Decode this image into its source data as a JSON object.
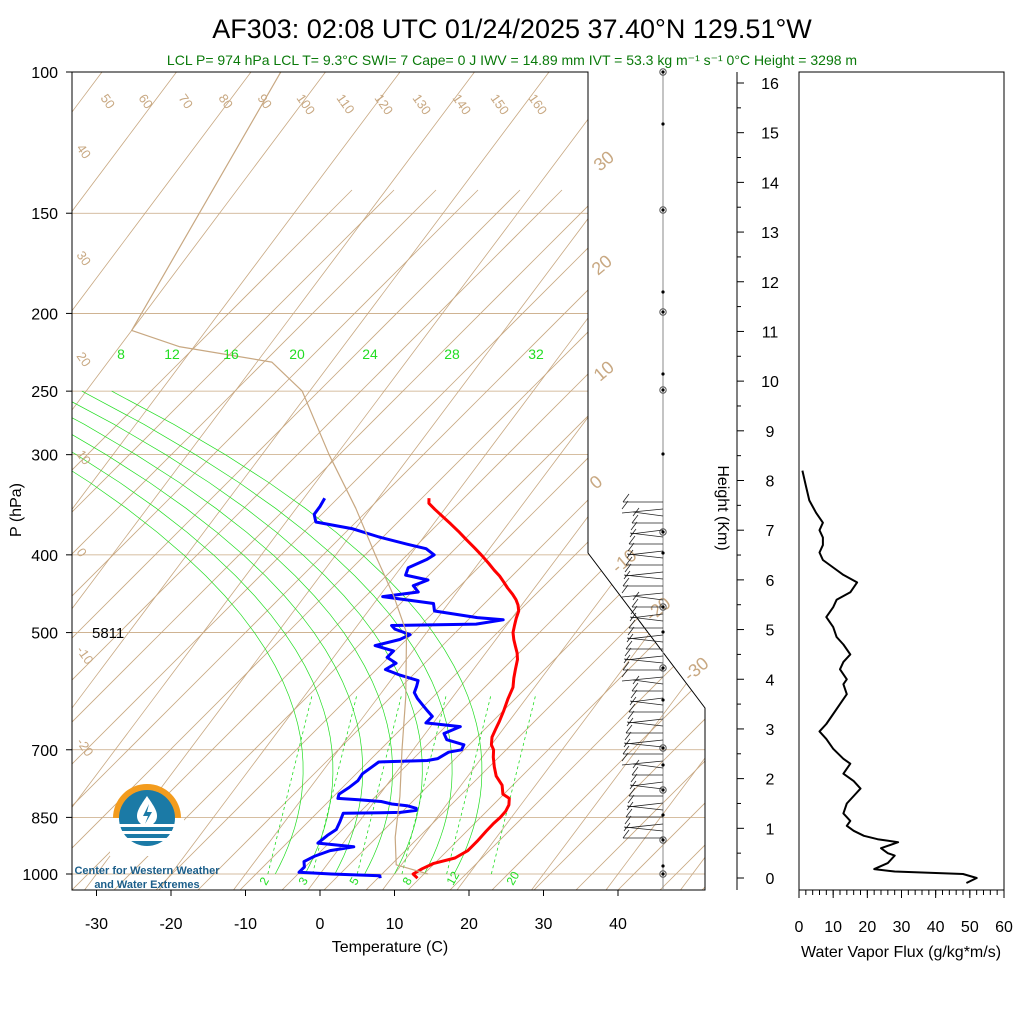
{
  "title": "AF303: 02:08 UTC 01/24/2025  37.40°N 129.51°W",
  "subtitle": "LCL P= 974 hPa  LCL T= 9.3°C  SWI= 7  Cape= 0 J  IWV = 14.89 mm  IVT = 53.3 kg m⁻¹ s⁻¹  0°C Height = 3298 m",
  "height_500": "5811",
  "logo": {
    "line1": "Center for Western Weather",
    "line2": "and Water Extremes"
  },
  "colors": {
    "temperature": "#ff0000",
    "dewpoint": "#0000ff",
    "grid": "#c8a882",
    "mixing_ratio": "#22dd22",
    "subtitle": "#0a7a0a"
  },
  "chart_data": [
    {
      "type": "line",
      "name": "skew-t",
      "xlabel": "Temperature (C)",
      "ylabel": "P (hPa)",
      "x_ticks": [
        "-30",
        "-20",
        "-10",
        "0",
        "10",
        "20",
        "30",
        "40"
      ],
      "y_ticks": [
        100,
        150,
        200,
        250,
        300,
        400,
        500,
        700,
        850,
        1000
      ],
      "dry_adiabat_labels": [
        "50",
        "60",
        "70",
        "80",
        "90",
        "100",
        "110",
        "120",
        "130",
        "140",
        "150",
        "160"
      ],
      "isotherm_labels_left": [
        "40",
        "30",
        "20",
        "10",
        "0",
        "-10",
        "-20"
      ],
      "isotherm_labels_right": [
        "30",
        "20",
        "10",
        "0",
        "-10",
        "-20",
        "-30"
      ],
      "mixing_ratio_labels_top": [
        "8",
        "12",
        "16",
        "20",
        "24",
        "28",
        "32"
      ],
      "mixing_ratio_labels_bottom": [
        "2",
        "3",
        "5",
        "8",
        "12",
        "20"
      ],
      "height_km_ticks": [
        "0",
        "1",
        "2",
        "3",
        "4",
        "5",
        "6",
        "7",
        "8",
        "9",
        "10",
        "11",
        "12",
        "13",
        "14",
        "15",
        "16"
      ],
      "height_label": "Height (Km)",
      "series": [
        {
          "name": "temperature",
          "points": [
            [
              13.5,
              1012
            ],
            [
              12.5,
              1000
            ],
            [
              13.2,
              985
            ],
            [
              14.2,
              970
            ],
            [
              16.5,
              955
            ],
            [
              17.5,
              935
            ],
            [
              17.8,
              910
            ],
            [
              18.0,
              885
            ],
            [
              18.2,
              865
            ],
            [
              18.5,
              850
            ],
            [
              18.6,
              835
            ],
            [
              18.4,
              820
            ],
            [
              17.8,
              805
            ],
            [
              16.5,
              795
            ],
            [
              15.5,
              775
            ],
            [
              13.8,
              755
            ],
            [
              12.6,
              735
            ],
            [
              11.5,
              715
            ],
            [
              10.8,
              700
            ],
            [
              10.0,
              690
            ],
            [
              9.3,
              675
            ],
            [
              9.0,
              660
            ],
            [
              8.7,
              645
            ],
            [
              8.2,
              625
            ],
            [
              7.6,
              605
            ],
            [
              7.1,
              585
            ],
            [
              6.3,
              570
            ],
            [
              5.6,
              555
            ],
            [
              4.9,
              540
            ],
            [
              4.2,
              530
            ],
            [
              3.3,
              520
            ],
            [
              2.4,
              510
            ],
            [
              1.6,
              500
            ],
            [
              1.1,
              490
            ],
            [
              0.6,
              480
            ],
            [
              0.2,
              470
            ],
            [
              -0.5,
              462
            ],
            [
              -1.3,
              455
            ],
            [
              -2.3,
              448
            ],
            [
              -3.6,
              440
            ],
            [
              -4.8,
              432
            ],
            [
              -5.9,
              425
            ],
            [
              -7.2,
              418
            ],
            [
              -8.6,
              410
            ],
            [
              -10.3,
              401
            ],
            [
              -12.1,
              392
            ],
            [
              -14.0,
              383
            ],
            [
              -15.9,
              374
            ],
            [
              -17.7,
              366
            ],
            [
              -19.6,
              358
            ],
            [
              -21.3,
              351
            ],
            [
              -22.7,
              345
            ],
            [
              -23.2,
              340
            ]
          ]
        },
        {
          "name": "dewpoint",
          "points": [
            [
              8.5,
              1012
            ],
            [
              8.2,
              1005
            ],
            [
              1.5,
              1000
            ],
            [
              -3.0,
              995
            ],
            [
              -2.8,
              980
            ],
            [
              -3.4,
              965
            ],
            [
              -2.5,
              950
            ],
            [
              -1.0,
              935
            ],
            [
              1.8,
              925
            ],
            [
              -3.4,
              915
            ],
            [
              -2.9,
              895
            ],
            [
              -2.3,
              880
            ],
            [
              -2.6,
              860
            ],
            [
              -3.0,
              840
            ],
            [
              4.6,
              838
            ],
            [
              6.5,
              833
            ],
            [
              6.3,
              828
            ],
            [
              4.8,
              822
            ],
            [
              2.6,
              818
            ],
            [
              0.9,
              812
            ],
            [
              -2.3,
              808
            ],
            [
              -5.2,
              805
            ],
            [
              -5.5,
              795
            ],
            [
              -4.8,
              780
            ],
            [
              -4.3,
              765
            ],
            [
              -4.4,
              750
            ],
            [
              -3.8,
              735
            ],
            [
              -3.4,
              725
            ],
            [
              3.0,
              722
            ],
            [
              4.2,
              718
            ],
            [
              5.0,
              705
            ],
            [
              6.5,
              700
            ],
            [
              6.3,
              690
            ],
            [
              3.5,
              680
            ],
            [
              2.5,
              668
            ],
            [
              4.0,
              655
            ],
            [
              -1.0,
              648
            ],
            [
              -0.8,
              636
            ],
            [
              -2.0,
              626
            ],
            [
              -3.3,
              615
            ],
            [
              -4.6,
              604
            ],
            [
              -5.6,
              594
            ],
            [
              -5.9,
              584
            ],
            [
              -6.3,
              574
            ],
            [
              -9.3,
              565
            ],
            [
              -11.8,
              556
            ],
            [
              -11.0,
              546
            ],
            [
              -12.8,
              537
            ],
            [
              -12.6,
              527
            ],
            [
              -15.6,
              519
            ],
            [
              -12.9,
              510
            ],
            [
              -12.0,
              503
            ],
            [
              -14.6,
              495
            ],
            [
              -15.4,
              490
            ],
            [
              -4.2,
              488
            ],
            [
              -1.0,
              482
            ],
            [
              -4.7,
              479
            ],
            [
              -11.1,
              470
            ],
            [
              -12.0,
              460
            ],
            [
              -19.5,
              451
            ],
            [
              -15.2,
              445
            ],
            [
              -16.5,
              437
            ],
            [
              -15.1,
              430
            ],
            [
              -18.6,
              424
            ],
            [
              -19.0,
              415
            ],
            [
              -17.3,
              405
            ],
            [
              -16.8,
              400
            ],
            [
              -18.5,
              393
            ],
            [
              -21.5,
              388
            ],
            [
              -26.0,
              380
            ],
            [
              -30.5,
              371
            ],
            [
              -36.0,
              364
            ],
            [
              -37.0,
              356
            ],
            [
              -37.0,
              348
            ],
            [
              -37.2,
              340
            ]
          ]
        },
        {
          "name": "parcel",
          "points": [
            [
              14.5,
              1000
            ],
            [
              9.3,
              974
            ],
            [
              6.4,
              900
            ],
            [
              2.9,
              800
            ],
            [
              -1.5,
              700
            ],
            [
              -6.4,
              600
            ],
            [
              -12.7,
              500
            ],
            [
              -18.1,
              450
            ],
            [
              -24.7,
              400
            ],
            [
              -32.0,
              350
            ],
            [
              -41.0,
              300
            ],
            [
              -51.0,
              250
            ],
            [
              -58.0,
              230
            ],
            [
              -72.0,
              220
            ],
            [
              -80.0,
              210
            ],
            [
              -86.0,
              100
            ]
          ]
        }
      ]
    },
    {
      "type": "line",
      "name": "water-vapor-flux",
      "xlabel": "Water Vapor Flux (g/kg*m/s)",
      "x_ticks": [
        "0",
        "10",
        "20",
        "30",
        "40",
        "50",
        "60"
      ],
      "xlim": [
        0,
        60
      ],
      "ylim_km": [
        0,
        16.5
      ],
      "points": [
        [
          49,
          -0.1
        ],
        [
          52,
          0.0
        ],
        [
          48,
          0.08
        ],
        [
          40,
          0.1
        ],
        [
          28,
          0.13
        ],
        [
          22,
          0.18
        ],
        [
          26,
          0.3
        ],
        [
          28,
          0.45
        ],
        [
          26,
          0.5
        ],
        [
          24,
          0.6
        ],
        [
          29,
          0.72
        ],
        [
          23,
          0.78
        ],
        [
          19,
          0.85
        ],
        [
          16,
          0.95
        ],
        [
          14,
          1.05
        ],
        [
          15,
          1.15
        ],
        [
          13,
          1.3
        ],
        [
          14,
          1.5
        ],
        [
          16,
          1.65
        ],
        [
          18,
          1.8
        ],
        [
          16,
          1.95
        ],
        [
          13,
          2.1
        ],
        [
          15,
          2.3
        ],
        [
          13,
          2.4
        ],
        [
          10,
          2.6
        ],
        [
          8,
          2.8
        ],
        [
          6,
          2.95
        ],
        [
          8,
          3.1
        ],
        [
          10,
          3.3
        ],
        [
          12,
          3.5
        ],
        [
          14,
          3.7
        ],
        [
          13,
          3.9
        ],
        [
          14,
          4.0
        ],
        [
          12,
          4.2
        ],
        [
          13,
          4.35
        ],
        [
          15,
          4.5
        ],
        [
          13,
          4.7
        ],
        [
          11,
          4.85
        ],
        [
          10,
          5.05
        ],
        [
          8,
          5.25
        ],
        [
          10,
          5.45
        ],
        [
          11,
          5.6
        ],
        [
          15,
          5.75
        ],
        [
          17,
          5.95
        ],
        [
          13,
          6.1
        ],
        [
          10,
          6.25
        ],
        [
          7,
          6.4
        ],
        [
          6,
          6.55
        ],
        [
          7,
          6.7
        ],
        [
          7,
          6.85
        ],
        [
          6,
          7.0
        ],
        [
          7,
          7.15
        ],
        [
          5,
          7.35
        ],
        [
          3,
          7.6
        ],
        [
          2,
          7.9
        ],
        [
          1,
          8.2
        ]
      ]
    }
  ]
}
